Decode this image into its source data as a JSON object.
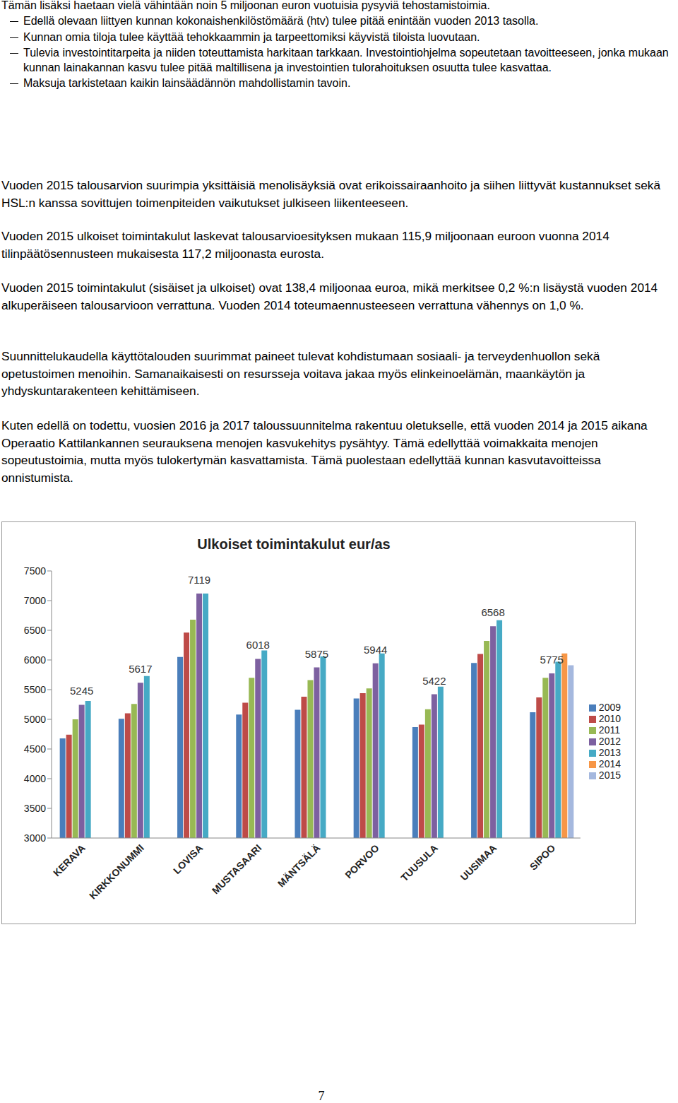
{
  "document": {
    "intro": "Tämän lisäksi haetaan vielä vähintään noin 5 miljoonan euron vuotuisia pysyviä tehostamistoimia.",
    "bullets": [
      "Edellä olevaan liittyen kunnan kokonaishenkilöstömäärä (htv) tulee pitää enintään vuoden 2013 tasolla.",
      "Kunnan omia tiloja tulee käyttää tehokkaammin ja tarpeettomiksi käyvistä tiloista luovutaan.",
      "Tulevia investointitarpeita ja niiden toteuttamista harkitaan tarkkaan. Investointiohjelma sopeutetaan tavoitteeseen, jonka mukaan kunnan lainakannan kasvu tulee pitää maltillisena ja investointien tulorahoituksen osuutta tulee kasvattaa.",
      "Maksuja tarkistetaan kaikin lainsäädännön mahdollistamin tavoin."
    ],
    "paragraphs": [
      "Vuoden 2015 talousarvion suurimpia yksittäisiä menolisäyksiä ovat erikoissairaanhoito ja siihen liittyvät kustannukset sekä HSL:n kanssa sovittujen toimenpiteiden vaikutukset julkiseen liikenteeseen.",
      "Vuoden 2015 ulkoiset toimintakulut laskevat talousarvioesityksen mukaan 115,9 miljoonaan euroon vuonna 2014 tilinpäätösennusteen mukaisesta 117,2 miljoonasta eurosta.",
      "Vuoden 2015 toimintakulut (sisäiset ja ulkoiset) ovat 138,4 miljoonaa euroa, mikä merkitsee 0,2 %:n lisäystä vuoden 2014 alkuperäiseen talousarvioon verrattuna. Vuoden 2014 toteumaennusteeseen verrattuna vähennys on 1,0 %.",
      "Suunnittelukaudella käyttötalouden suurimmat paineet tulevat kohdistumaan sosiaali- ja terveydenhuollon sekä opetustoimen menoihin. Samanaikaisesti on resursseja voitava jakaa myös elinkeinoelämän, maankäytön ja yhdyskuntarakenteen kehittämiseen.",
      "Kuten edellä on todettu, vuosien 2016 ja 2017 taloussuunnitelma rakentuu oletukselle, että vuoden 2014 ja 2015 aikana Operaatio Kattilankannen seurauksena menojen kasvukehitys pysähtyy. Tämä edellyttää voimakkaita menojen sopeutustoimia, mutta myös tulokertymän kasvattamista. Tämä puolestaan edellyttää kunnan kasvutavoitteissa onnistumista."
    ],
    "page_number": "7"
  },
  "chart_data": {
    "type": "bar",
    "title": "Ulkoiset toimintakulut eur/as",
    "categories": [
      "KERAVA",
      "KIRKKONUMMI",
      "LOVISA",
      "MUSTASAARI",
      "MÄNTSÄLÄ",
      "PORVOO",
      "TUUSULA",
      "UUSIMAA",
      "SIPOO"
    ],
    "series": [
      {
        "name": "2009",
        "color": "#4a7ebb",
        "values": [
          4680,
          5010,
          6050,
          5080,
          5160,
          5350,
          4870,
          5950,
          5120
        ]
      },
      {
        "name": "2010",
        "color": "#be4b48",
        "values": [
          4740,
          5100,
          6460,
          5280,
          5380,
          5440,
          4910,
          6100,
          5370
        ]
      },
      {
        "name": "2011",
        "color": "#98b954",
        "values": [
          5000,
          5260,
          6680,
          5700,
          5660,
          5520,
          5170,
          6320,
          5700
        ]
      },
      {
        "name": "2012",
        "color": "#7d60a0",
        "data_labels": true,
        "values": [
          5245,
          5617,
          7119,
          6018,
          5875,
          5944,
          5422,
          6568,
          5775
        ]
      },
      {
        "name": "2013",
        "color": "#46aac5",
        "values": [
          5310,
          5730,
          7119,
          6160,
          6060,
          6110,
          5550,
          6670,
          5970
        ]
      },
      {
        "name": "2014",
        "color": "#f79646",
        "values": [
          null,
          null,
          null,
          null,
          null,
          null,
          null,
          null,
          6110
        ]
      },
      {
        "name": "2015",
        "color": "#a5b8de",
        "values": [
          null,
          null,
          null,
          null,
          null,
          null,
          null,
          null,
          5910
        ]
      }
    ],
    "ylim": [
      3000,
      7500
    ],
    "yticks": [
      3000,
      3500,
      4000,
      4500,
      5000,
      5500,
      6000,
      6500,
      7000,
      7500
    ],
    "grid": false,
    "legend": "right"
  }
}
